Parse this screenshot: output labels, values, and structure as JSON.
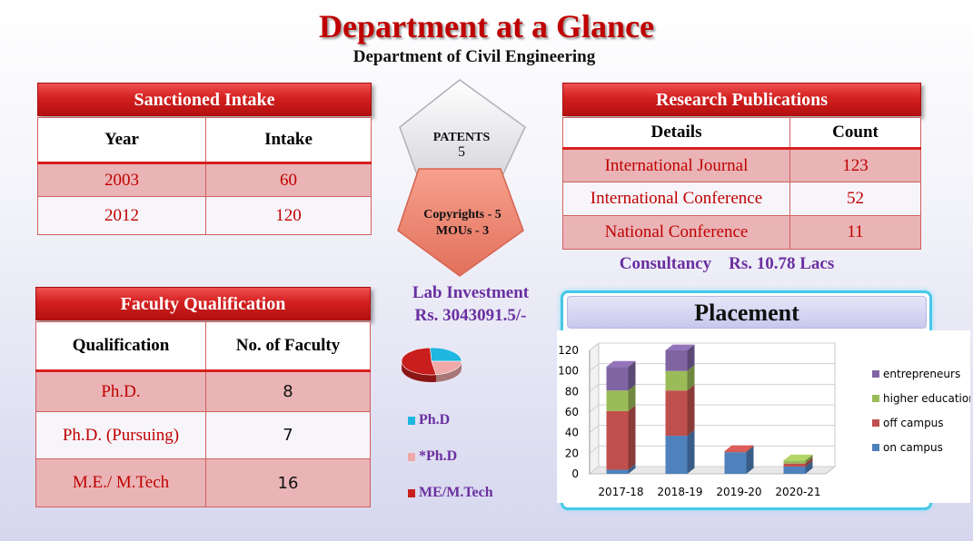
{
  "header": {
    "title": "Department at a Glance",
    "subtitle": "Department of Civil Engineering"
  },
  "sanctioned_intake": {
    "heading": "Sanctioned Intake",
    "columns": [
      "Year",
      "Intake"
    ],
    "rows": [
      {
        "year": "2003",
        "intake": "60"
      },
      {
        "year": "2012",
        "intake": "120"
      }
    ]
  },
  "patents": {
    "label": "PATENTS",
    "value": "5",
    "copyrights": "Copyrights - 5",
    "mous": "MOUs  - 3"
  },
  "research": {
    "heading": "Research Publications",
    "columns": [
      "Details",
      "Count"
    ],
    "rows": [
      {
        "detail": "International Journal",
        "count": "123"
      },
      {
        "detail": "International Conference",
        "count": "52"
      },
      {
        "detail": "National Conference",
        "count": "11"
      }
    ],
    "consultancy": "Consultancy    Rs. 10.78 Lacs"
  },
  "faculty": {
    "heading": "Faculty Qualification",
    "columns": [
      "Qualification",
      "No. of Faculty"
    ],
    "rows": [
      {
        "qualification": "Ph.D.",
        "count": "8"
      },
      {
        "qualification": "Ph.D. (Pursuing)",
        "count": "7"
      },
      {
        "qualification": "M.E./ M.Tech",
        "count": "16"
      }
    ]
  },
  "lab": {
    "line1": "Lab Investment",
    "line2": "Rs. 3043091.5/-"
  },
  "faculty_pie": {
    "legend": [
      {
        "label": "Ph.D",
        "color": "#1fb6e0"
      },
      {
        "label": "*Ph.D",
        "color": "#f0a8a8"
      },
      {
        "label": "ME/M.Tech",
        "color": "#c81e1e"
      }
    ]
  },
  "placement": {
    "heading": "Placement"
  },
  "colors": {
    "accent_red": "#c00000",
    "on_campus": "#4f81bd",
    "off_campus": "#c0504d",
    "higher_education": "#9bbb59",
    "entrepreneurs": "#8064a2"
  },
  "chart_data": [
    {
      "type": "pie",
      "categories": [
        "Ph.D",
        "*Ph.D",
        "ME/M.Tech"
      ],
      "values": [
        8,
        7,
        16
      ],
      "title": ""
    },
    {
      "type": "bar",
      "stacked": true,
      "title": "Placement",
      "categories": [
        "2017-18",
        "2018-19",
        "2019-20",
        "2020-21"
      ],
      "ylim": [
        0,
        120
      ],
      "yticks": [
        "0",
        "20",
        "40",
        "60",
        "80",
        "100",
        "120"
      ],
      "legend_position": "right",
      "series": [
        {
          "name": "on campus",
          "values": [
            4,
            37,
            21,
            7
          ]
        },
        {
          "name": "off campus",
          "values": [
            57,
            44,
            1,
            3
          ]
        },
        {
          "name": "higher education",
          "values": [
            20,
            19,
            0,
            3
          ]
        },
        {
          "name": "entrepreneurs",
          "values": [
            23,
            20,
            0,
            0
          ]
        }
      ]
    }
  ]
}
